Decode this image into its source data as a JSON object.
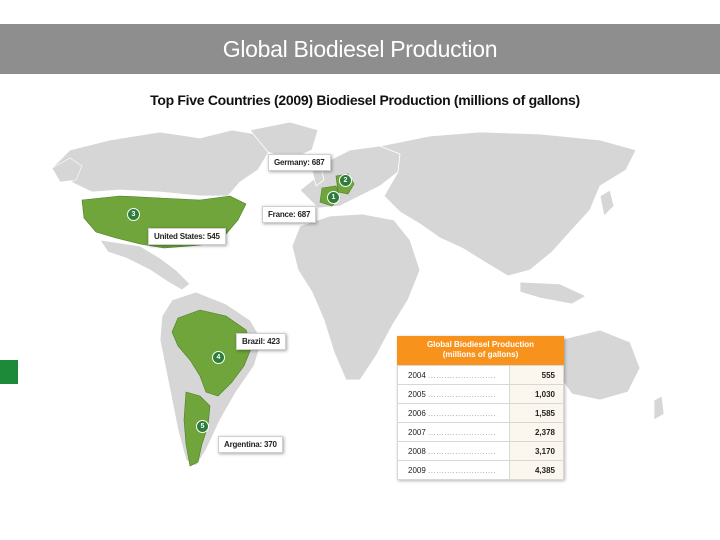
{
  "header": {
    "title": "Global Biodiesel Production"
  },
  "map": {
    "subtitle": "Top Five Countries (2009) Biodiesel Production (millions of gallons)",
    "highlight_color": "#6fa53a",
    "land_color": "#d6d6d6",
    "countries": [
      {
        "rank": "1",
        "label": "France: 687"
      },
      {
        "rank": "2",
        "label": "Germany: 687"
      },
      {
        "rank": "3",
        "label": "United States: 545"
      },
      {
        "rank": "4",
        "label": "Brazil: 423"
      },
      {
        "rank": "5",
        "label": "Argentina: 370"
      }
    ]
  },
  "table": {
    "title_line1": "Global Biodiesel Production",
    "title_line2": "(millions of gallons)",
    "header_color": "#f7931d",
    "rows": [
      {
        "year": "2004",
        "value": "555"
      },
      {
        "year": "2005",
        "value": "1,030"
      },
      {
        "year": "2006",
        "value": "1,585"
      },
      {
        "year": "2007",
        "value": "2,378"
      },
      {
        "year": "2008",
        "value": "3,170"
      },
      {
        "year": "2009",
        "value": "4,385"
      }
    ]
  }
}
